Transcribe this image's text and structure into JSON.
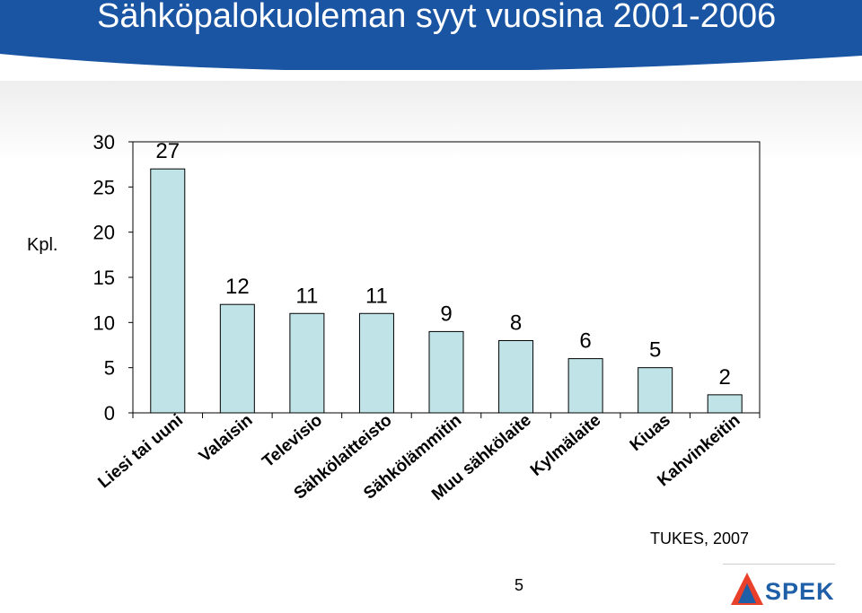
{
  "slide": {
    "title": "Sähköpalokuoleman syyt vuosina 2001-2006",
    "source": "TUKES, 2007",
    "page_number": "5",
    "logo_text": "SPEK"
  },
  "chart_data": {
    "type": "bar",
    "title": "",
    "ylabel": "Kpl.",
    "xlabel": "",
    "ylim": [
      0,
      30
    ],
    "yticks": [
      0,
      5,
      10,
      15,
      20,
      25,
      30
    ],
    "categories": [
      "Liesi tai uuni",
      "Valaisin",
      "Televisio",
      "Sähkölaitteisto",
      "Sähkölämmitin",
      "Muu sähkölaite",
      "Kylmälaite",
      "Kiuas",
      "Kahvinkeitin"
    ],
    "values": [
      27,
      12,
      11,
      11,
      9,
      8,
      6,
      5,
      2
    ],
    "data_labels": [
      "27",
      "12",
      "11",
      "11",
      "9",
      "8",
      "6",
      "5",
      "2"
    ],
    "grid": false,
    "bar_color": "#bfe3e6",
    "bar_edge_color": "#000000"
  }
}
